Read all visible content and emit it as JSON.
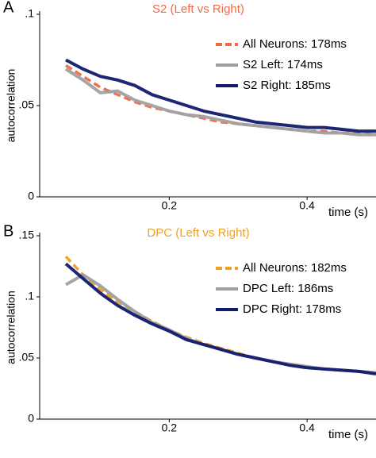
{
  "chart_data": [
    {
      "type": "line",
      "panel": "A",
      "title": "S2 (Left vs Right)",
      "title_color": "#f06a44",
      "ylabel": "autocorrelation",
      "xlabel": "time (s)",
      "x": [
        0.05,
        0.075,
        0.1,
        0.125,
        0.15,
        0.175,
        0.2,
        0.225,
        0.25,
        0.275,
        0.3,
        0.325,
        0.35,
        0.375,
        0.4,
        0.425,
        0.45,
        0.475,
        0.5
      ],
      "series": [
        {
          "name": "All Neurons: 178ms",
          "color": "#f06a44",
          "dashed": true,
          "values": [
            0.072,
            0.066,
            0.06,
            0.056,
            0.052,
            0.049,
            0.047,
            0.045,
            0.043,
            0.041,
            0.04,
            0.039,
            0.038,
            0.037,
            0.036,
            0.036,
            0.035,
            0.035,
            0.034
          ]
        },
        {
          "name": "S2 Left: 174ms",
          "color": "#a0a0a0",
          "dashed": false,
          "values": [
            0.07,
            0.064,
            0.057,
            0.058,
            0.053,
            0.05,
            0.047,
            0.045,
            0.044,
            0.042,
            0.04,
            0.039,
            0.038,
            0.037,
            0.036,
            0.035,
            0.035,
            0.034,
            0.034
          ]
        },
        {
          "name": "S2 Right: 185ms",
          "color": "#101a6e",
          "dashed": false,
          "values": [
            0.075,
            0.07,
            0.066,
            0.064,
            0.061,
            0.056,
            0.053,
            0.05,
            0.047,
            0.045,
            0.043,
            0.041,
            0.04,
            0.039,
            0.038,
            0.038,
            0.037,
            0.036,
            0.036
          ]
        }
      ],
      "xlim": [
        0.012,
        0.5
      ],
      "xticks": [
        0.2,
        0.4
      ],
      "ylim": [
        0,
        0.1
      ],
      "yticks": [
        0,
        {
          "value": 0.05,
          "label": ".05"
        },
        {
          "value": 0.1,
          "label": ".1"
        }
      ],
      "legend": "upper right"
    },
    {
      "type": "line",
      "panel": "B",
      "title": "DPC (Left vs Right)",
      "title_color": "#eea020",
      "ylabel": "autocorrelation",
      "xlabel": "time (s)",
      "x": [
        0.05,
        0.075,
        0.1,
        0.125,
        0.15,
        0.175,
        0.2,
        0.225,
        0.25,
        0.275,
        0.3,
        0.325,
        0.35,
        0.375,
        0.4,
        0.425,
        0.45,
        0.475,
        0.5
      ],
      "series": [
        {
          "name": "All Neurons: 182ms",
          "color": "#eea020",
          "dashed": true,
          "values": [
            0.133,
            0.118,
            0.106,
            0.096,
            0.088,
            0.08,
            0.073,
            0.067,
            0.062,
            0.058,
            0.054,
            0.05,
            0.047,
            0.045,
            0.043,
            0.041,
            0.04,
            0.039,
            0.038
          ]
        },
        {
          "name": "DPC Left: 186ms",
          "color": "#a0a0a0",
          "dashed": false,
          "values": [
            0.11,
            0.118,
            0.109,
            0.098,
            0.088,
            0.079,
            0.073,
            0.066,
            0.061,
            0.057,
            0.053,
            0.05,
            0.047,
            0.045,
            0.043,
            0.041,
            0.04,
            0.039,
            0.038
          ]
        },
        {
          "name": "DPC Right: 178ms",
          "color": "#101a6e",
          "dashed": false,
          "values": [
            0.127,
            0.115,
            0.103,
            0.093,
            0.085,
            0.078,
            0.072,
            0.065,
            0.061,
            0.057,
            0.053,
            0.05,
            0.047,
            0.044,
            0.042,
            0.041,
            0.04,
            0.039,
            0.037
          ]
        }
      ],
      "xlim": [
        0.012,
        0.5
      ],
      "xticks": [
        0.2,
        0.4
      ],
      "ylim": [
        0,
        0.15
      ],
      "yticks": [
        0,
        {
          "value": 0.05,
          "label": ".05"
        },
        {
          "value": 0.1,
          "label": ".1"
        },
        {
          "value": 0.15,
          "label": ".15"
        }
      ],
      "legend": "upper right"
    }
  ]
}
